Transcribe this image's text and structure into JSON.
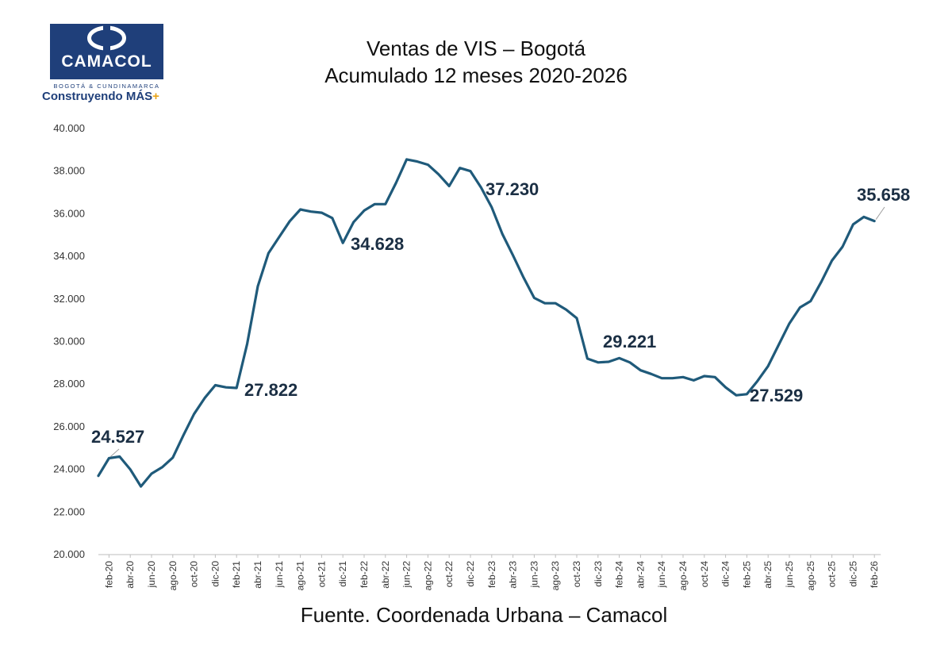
{
  "logo": {
    "name": "CAMACOL",
    "subtitle": "BOGOTÁ & CUNDINAMARCA",
    "slogan": "Construyendo MÁS",
    "slogan_plus": "+",
    "brand_color": "#1f3f7a",
    "accent_color": "#e8a317"
  },
  "footer": {
    "source": "Fuente. Coordenada  Urbana – Camacol"
  },
  "chart_data": {
    "type": "line",
    "title": "Ventas de VIS – Bogotá",
    "subtitle": "Acumulado 12 meses  2020-2026",
    "xlabel": "",
    "ylabel": "",
    "ylim": [
      20000,
      40000
    ],
    "yticks": [
      20000,
      22000,
      24000,
      26000,
      28000,
      30000,
      32000,
      34000,
      36000,
      38000,
      40000
    ],
    "ytick_labels": [
      "20.000",
      "22.000",
      "24.000",
      "26.000",
      "28.000",
      "30.000",
      "32.000",
      "34.000",
      "36.000",
      "38.000",
      "40.000"
    ],
    "xtick_labels": [
      "feb-20",
      "abr-20",
      "jun-20",
      "ago-20",
      "oct-20",
      "dic-20",
      "feb-21",
      "abr-21",
      "jun-21",
      "ago-21",
      "oct-21",
      "dic-21",
      "feb-22",
      "abr-22",
      "jun-22",
      "ago-22",
      "oct-22",
      "dic-22",
      "feb-23",
      "abr-23",
      "jun-23",
      "ago-23",
      "oct-23",
      "dic-23",
      "feb-24",
      "abr-24",
      "jun-24",
      "ago-24",
      "oct-24",
      "dic-24",
      "feb-25",
      "abr-25",
      "jun-25",
      "ago-25",
      "oct-25",
      "dic-25",
      "feb-26"
    ],
    "grid": false,
    "line_color": "#1f5a7a",
    "series": [
      {
        "name": "Ventas de VIS acumulado 12 meses",
        "x": [
          "ene-20",
          "feb-20",
          "mar-20",
          "abr-20",
          "may-20",
          "jun-20",
          "jul-20",
          "ago-20",
          "sep-20",
          "oct-20",
          "nov-20",
          "dic-20",
          "ene-21",
          "feb-21",
          "mar-21",
          "abr-21",
          "may-21",
          "jun-21",
          "jul-21",
          "ago-21",
          "sep-21",
          "oct-21",
          "nov-21",
          "dic-21",
          "ene-22",
          "feb-22",
          "mar-22",
          "abr-22",
          "may-22",
          "jun-22",
          "jul-22",
          "ago-22",
          "sep-22",
          "oct-22",
          "nov-22",
          "dic-22",
          "ene-23",
          "feb-23",
          "mar-23",
          "abr-23",
          "may-23",
          "jun-23",
          "jul-23",
          "ago-23",
          "sep-23",
          "oct-23",
          "nov-23",
          "dic-23",
          "ene-24",
          "feb-24",
          "mar-24",
          "abr-24",
          "may-24",
          "jun-24",
          "jul-24",
          "ago-24",
          "sep-24",
          "oct-24",
          "nov-24",
          "dic-24",
          "ene-25",
          "feb-25",
          "mar-25",
          "abr-25",
          "may-25",
          "jun-25",
          "jul-25",
          "ago-25",
          "sep-25",
          "oct-25",
          "nov-25",
          "dic-25",
          "ene-26",
          "feb-26"
        ],
        "values": [
          23700,
          24527,
          24600,
          24000,
          23200,
          23800,
          24100,
          24550,
          25600,
          26600,
          27350,
          27950,
          27850,
          27822,
          29900,
          32600,
          34150,
          34900,
          35650,
          36200,
          36100,
          36050,
          35800,
          34628,
          35600,
          36150,
          36450,
          36450,
          37450,
          38550,
          38450,
          38300,
          37850,
          37300,
          38150,
          38000,
          37230,
          36300,
          35050,
          34050,
          33000,
          32050,
          31800,
          31800,
          31500,
          31100,
          29200,
          29020,
          29050,
          29221,
          29020,
          28650,
          28480,
          28280,
          28280,
          28330,
          28180,
          28380,
          28330,
          27850,
          27480,
          27529,
          28150,
          28850,
          29850,
          30850,
          31600,
          31900,
          32800,
          33800,
          34450,
          35500,
          35850,
          35658
        ]
      }
    ],
    "annotations": [
      {
        "label": "24.527",
        "x": "feb-20",
        "value": 24527
      },
      {
        "label": "27.822",
        "x": "feb-21",
        "value": 27822
      },
      {
        "label": "34.628",
        "x": "dic-21",
        "value": 34628
      },
      {
        "label": "37.230",
        "x": "ene-23",
        "value": 37230
      },
      {
        "label": "29.221",
        "x": "feb-24",
        "value": 29221
      },
      {
        "label": "27.529",
        "x": "feb-25",
        "value": 27529
      },
      {
        "label": "35.658",
        "x": "feb-26",
        "value": 35658
      }
    ]
  }
}
